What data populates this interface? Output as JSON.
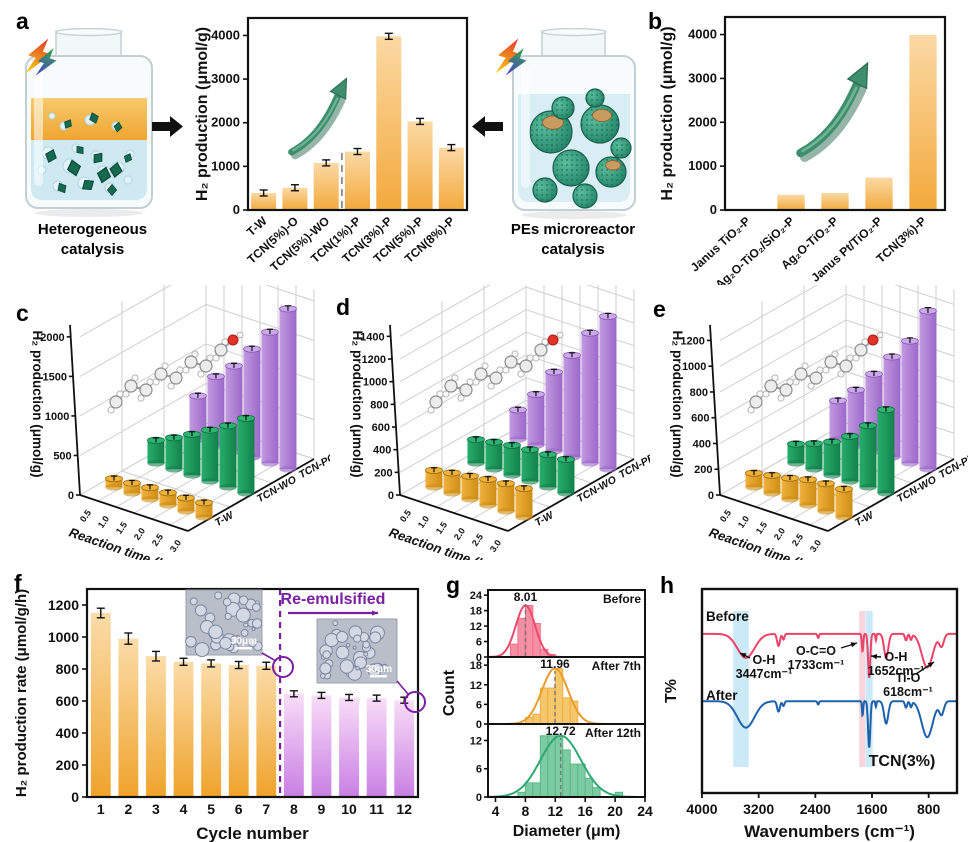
{
  "panels": {
    "a": {
      "label": "a",
      "jar_left": {
        "caption1": "Heterogeneous",
        "caption2": "catalysis"
      },
      "jar_right": {
        "caption1": "PEs microreactor",
        "caption2": "catalysis"
      }
    },
    "b": {
      "label": "b"
    },
    "c": {
      "label": "c"
    },
    "d": {
      "label": "d"
    },
    "e": {
      "label": "e"
    },
    "f": {
      "label": "f"
    },
    "g": {
      "label": "g"
    },
    "h": {
      "label": "h"
    }
  },
  "chart_data": [
    {
      "id": "a",
      "type": "bar",
      "ylabel": "H₂ production (μmol/g)",
      "categories": [
        "T-W",
        "TCN(5%)-O",
        "TCN(5%)-WO",
        "TCN(1%)-P",
        "TCN(3%)-P",
        "TCN(5%)-P",
        "TCN(8%)-P"
      ],
      "values": [
        390,
        510,
        1080,
        1340,
        3980,
        2030,
        1430
      ],
      "errors": [
        25,
        25,
        55,
        55,
        60,
        55,
        45
      ],
      "yticks": [
        0,
        1000,
        2000,
        3000,
        4000
      ],
      "ylim": [
        0,
        4400
      ],
      "separator_after_index": 2,
      "trend_arrow": true,
      "bar_colors": {
        "top": "#FBD9A4",
        "bottom": "#F3A93C"
      }
    },
    {
      "id": "b",
      "type": "bar",
      "ylabel": "H₂ production (μmol/g)",
      "categories": [
        "Janus TiO₂-P",
        "Ag₂O-TiO₂/SiO₂-P",
        "Ag₂O-TiO₂-P",
        "Janus Pt/TiO₂-P",
        "TCN(3%)-P"
      ],
      "values": [
        15,
        350,
        390,
        740,
        3990
      ],
      "yticks": [
        0,
        1000,
        2000,
        3000,
        4000
      ],
      "ylim": [
        0,
        4400
      ],
      "trend_arrow": true,
      "bar_colors": {
        "top": "#FBD9A4",
        "bottom": "#F3A93C"
      }
    },
    {
      "id": "c",
      "type": "bar3d",
      "xlabel": "Reaction time (h)",
      "ylabel": "H₂ production (μmol/g)",
      "x": [
        0.5,
        1.0,
        1.5,
        2.0,
        2.5,
        3.0
      ],
      "yticks": [
        0,
        500,
        1000,
        1500,
        2000
      ],
      "ylim": [
        0,
        2150
      ],
      "series": [
        {
          "name": "T-W",
          "color": "orange",
          "values": [
            110,
            130,
            150,
            160,
            170,
            185
          ],
          "errors": [
            15,
            15,
            15,
            15,
            15,
            15
          ]
        },
        {
          "name": "TCN-WO",
          "color": "green",
          "values": [
            290,
            400,
            520,
            650,
            780,
            950
          ],
          "errors": [
            20,
            20,
            22,
            25,
            25,
            28
          ]
        },
        {
          "name": "TCN-PO",
          "color": "purple",
          "values": [
            550,
            870,
            1080,
            1370,
            1660,
            2030
          ],
          "errors": [
            28,
            30,
            30,
            35,
            35,
            38
          ]
        }
      ]
    },
    {
      "id": "d",
      "type": "bar3d",
      "xlabel": "Reaction time (h)",
      "ylabel": "H₂ production (μmol/g)",
      "x": [
        0.5,
        1.0,
        1.5,
        2.0,
        2.5,
        3.0
      ],
      "yticks": [
        0,
        200,
        400,
        600,
        800,
        1000,
        1200,
        1400
      ],
      "ylim": [
        0,
        1500
      ],
      "series": [
        {
          "name": "T-W",
          "color": "orange",
          "values": [
            150,
            180,
            205,
            230,
            245,
            255
          ],
          "errors": [
            12,
            12,
            12,
            14,
            14,
            14
          ]
        },
        {
          "name": "TCN-WO",
          "color": "green",
          "values": [
            210,
            240,
            265,
            280,
            290,
            300
          ],
          "errors": [
            12,
            12,
            14,
            14,
            14,
            14
          ]
        },
        {
          "name": "TCN-PB",
          "color": "purple",
          "values": [
            260,
            450,
            700,
            900,
            1150,
            1350
          ],
          "errors": [
            16,
            18,
            20,
            22,
            24,
            26
          ]
        }
      ]
    },
    {
      "id": "e",
      "type": "bar3d",
      "xlabel": "Reaction time (h)",
      "ylabel": "H₂ production (μmol/g)",
      "x": [
        0.5,
        1.0,
        1.5,
        2.0,
        2.5,
        3.0
      ],
      "yticks": [
        0,
        200,
        400,
        600,
        800,
        1000,
        1200
      ],
      "ylim": [
        0,
        1320
      ],
      "series": [
        {
          "name": "T-W",
          "color": "orange",
          "values": [
            110,
            140,
            165,
            200,
            215,
            220
          ],
          "errors": [
            12,
            12,
            12,
            12,
            12,
            12
          ]
        },
        {
          "name": "TCN-WO",
          "color": "green",
          "values": [
            150,
            200,
            260,
            350,
            480,
            650
          ],
          "errors": [
            12,
            14,
            14,
            16,
            18,
            20
          ]
        },
        {
          "name": "TCN-PN",
          "color": "purple",
          "values": [
            300,
            430,
            600,
            780,
            950,
            1230
          ],
          "errors": [
            16,
            18,
            20,
            22,
            24,
            26
          ]
        }
      ]
    },
    {
      "id": "f",
      "type": "bar",
      "xlabel": "Cycle number",
      "ylabel": "H₂ production rate (μmol/g/h)",
      "categories": [
        "1",
        "2",
        "3",
        "4",
        "5",
        "6",
        "7",
        "8",
        "9",
        "10",
        "11",
        "12"
      ],
      "values": [
        1150,
        990,
        880,
        845,
        835,
        825,
        820,
        645,
        635,
        622,
        618,
        605
      ],
      "errors": [
        30,
        35,
        30,
        22,
        22,
        22,
        22,
        14,
        14,
        14,
        14,
        18
      ],
      "yticks": [
        0,
        200,
        400,
        600,
        800,
        1000,
        1200
      ],
      "ylim": [
        0,
        1300
      ],
      "divider_after_index": 6,
      "annotation": "Re-emulsified",
      "accent": "#7B1FA2",
      "insets": [
        {
          "scale_label": "30μm"
        },
        {
          "scale_label": "30μm"
        }
      ],
      "group_colors": [
        {
          "top": "#FBDCA8",
          "bottom": "#EFA32B",
          "count": 7
        },
        {
          "top": "#F9DDF8",
          "bottom": "#C97FE3",
          "count": 5
        }
      ]
    },
    {
      "id": "g",
      "type": "histogram",
      "xlabel": "Diameter (μm)",
      "ylabel": "Count",
      "xticks": [
        4,
        8,
        12,
        16,
        20,
        24
      ],
      "xlim": [
        3,
        24
      ],
      "panels": [
        {
          "name": "Before",
          "mean_label": "8.01",
          "mean": 8.01,
          "sigma": 1.3,
          "bin_start": 6,
          "heights": [
            5,
            15,
            20,
            13,
            3,
            1
          ],
          "yticks": [
            0,
            6,
            12,
            18,
            24
          ],
          "ymax": 26,
          "fill": "#F78FA4",
          "edge": "#F27188",
          "line": "#EE4A6B"
        },
        {
          "name": "After 7th",
          "mean_label": "11.96",
          "mean": 11.96,
          "sigma": 1.75,
          "bin_start": 8,
          "heights": [
            2,
            3,
            11,
            11,
            17,
            8,
            7
          ],
          "yticks": [
            0,
            6,
            12,
            18
          ],
          "ymax": 20.5,
          "fill": "#F7C76B",
          "edge": "#EFAF45",
          "line": "#E89C2D"
        },
        {
          "name": "After 12th",
          "mean_label": "12.72",
          "mean": 12.72,
          "sigma": 2.7,
          "bin_start": 7,
          "heights": [
            1,
            3,
            3,
            13,
            13,
            13,
            10,
            7,
            7,
            4,
            2,
            0,
            0,
            1
          ],
          "yticks": [
            0,
            6,
            12
          ],
          "ymax": 15.5,
          "fill": "#7ECBA1",
          "edge": "#57BA88",
          "line": "#2FA873"
        }
      ]
    },
    {
      "id": "h",
      "type": "line",
      "xlabel": "Wavenumbers (cm⁻¹)",
      "ylabel": "T%",
      "xticks": [
        4000,
        3200,
        2400,
        1600,
        800
      ],
      "xlim": [
        4000,
        400
      ],
      "corner_label": "TCN(3%)",
      "bands": [
        {
          "from": 3560,
          "to": 3340,
          "color": "#C3E5F6"
        },
        {
          "from": 1780,
          "to": 1698,
          "color": "#F9CBD6"
        },
        {
          "from": 1692,
          "to": 1590,
          "color": "#C3E5F6"
        }
      ],
      "series": [
        {
          "name": "Before",
          "color": "#EE4368",
          "base": 0.22,
          "dips": [
            [
              3380,
              170,
              0.3
            ],
            [
              2920,
              28,
              0.15
            ],
            [
              2850,
              20,
              0.07
            ],
            [
              2360,
              15,
              0.05
            ],
            [
              1733,
              14,
              0.22
            ],
            [
              1640,
              22,
              0.55
            ],
            [
              1545,
              10,
              0.08
            ],
            [
              1400,
              42,
              0.3
            ],
            [
              1120,
              22,
              0.08
            ],
            [
              1050,
              20,
              0.07
            ],
            [
              820,
              110,
              0.42
            ],
            [
              618,
              45,
              0.15
            ]
          ]
        },
        {
          "name": "After",
          "color": "#1E62AC",
          "base": 0.55,
          "dips": [
            [
              3380,
              170,
              0.33
            ],
            [
              2920,
              28,
              0.13
            ],
            [
              2850,
              20,
              0.06
            ],
            [
              2360,
              15,
              0.04
            ],
            [
              1733,
              12,
              0.18
            ],
            [
              1640,
              22,
              0.58
            ],
            [
              1545,
              10,
              0.07
            ],
            [
              1400,
              42,
              0.28
            ],
            [
              1120,
              22,
              0.08
            ],
            [
              1050,
              20,
              0.07
            ],
            [
              820,
              110,
              0.45
            ],
            [
              618,
              45,
              0.16
            ]
          ]
        }
      ],
      "annotations": [
        {
          "lines": [
            "Before"
          ],
          "x": 56,
          "y": 61,
          "anchor": "start",
          "size": 13.5
        },
        {
          "lines": [
            "After"
          ],
          "x": 56,
          "y": 140,
          "anchor": "start",
          "size": 13.5
        },
        {
          "lines": [
            "O-H",
            "3447cm⁻¹"
          ],
          "x": 114,
          "y": 104,
          "anchor": "middle",
          "arrow": [
            100,
            98,
            90,
            93
          ]
        },
        {
          "lines": [
            "O-C=O",
            "1733cm⁻¹"
          ],
          "x": 166,
          "y": 95,
          "anchor": "middle",
          "arrow": [
            191,
            88,
            207,
            83
          ]
        },
        {
          "lines": [
            "O-H",
            "1652cm⁻¹"
          ],
          "x": 246,
          "y": 101,
          "anchor": "middle",
          "arrow": [
            231,
            97,
            221,
            96
          ]
        },
        {
          "lines": [
            "Ti-O",
            "618cm⁻¹"
          ],
          "x": 258,
          "y": 122,
          "anchor": "middle",
          "arrow": [
            266,
            114,
            284,
            102
          ]
        }
      ]
    }
  ]
}
